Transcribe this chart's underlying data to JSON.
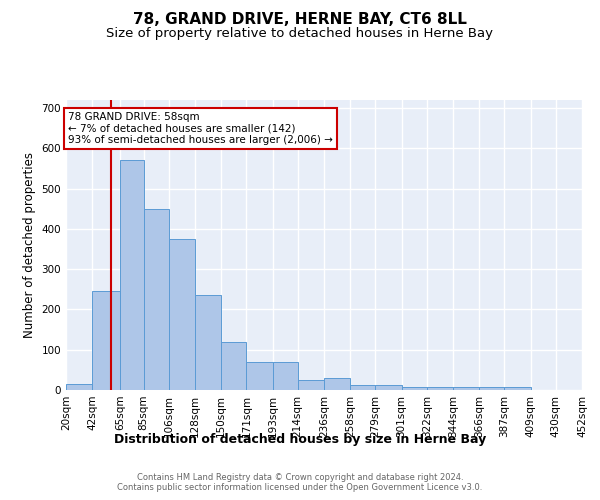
{
  "title": "78, GRAND DRIVE, HERNE BAY, CT6 8LL",
  "subtitle": "Size of property relative to detached houses in Herne Bay",
  "xlabel": "Distribution of detached houses by size in Herne Bay",
  "ylabel": "Number of detached properties",
  "bin_edges": [
    20,
    42,
    65,
    85,
    106,
    128,
    150,
    171,
    193,
    214,
    236,
    258,
    279,
    301,
    322,
    344,
    366,
    387,
    409,
    430,
    452
  ],
  "bin_labels": [
    "20sqm",
    "42sqm",
    "65sqm",
    "85sqm",
    "106sqm",
    "128sqm",
    "150sqm",
    "171sqm",
    "193sqm",
    "214sqm",
    "236sqm",
    "258sqm",
    "279sqm",
    "301sqm",
    "322sqm",
    "344sqm",
    "366sqm",
    "387sqm",
    "409sqm",
    "430sqm",
    "452sqm"
  ],
  "bar_heights": [
    15,
    245,
    570,
    450,
    375,
    235,
    120,
    70,
    70,
    25,
    30,
    12,
    12,
    8,
    8,
    8,
    8,
    8,
    0,
    0,
    5
  ],
  "bar_color": "#aec6e8",
  "bar_edge_color": "#5b9bd5",
  "red_line_x": 58,
  "red_line_color": "#cc0000",
  "annotation_text": "78 GRAND DRIVE: 58sqm\n← 7% of detached houses are smaller (142)\n93% of semi-detached houses are larger (2,006) →",
  "annotation_box_color": "#ffffff",
  "annotation_box_edge": "#cc0000",
  "ylim": [
    0,
    720
  ],
  "yticks": [
    0,
    100,
    200,
    300,
    400,
    500,
    600,
    700
  ],
  "bg_color": "#e8eef8",
  "grid_color": "#ffffff",
  "title_fontsize": 11,
  "subtitle_fontsize": 9.5,
  "axis_label_fontsize": 8.5,
  "tick_fontsize": 7.5,
  "footer_text": "Contains HM Land Registry data © Crown copyright and database right 2024.\nContains public sector information licensed under the Open Government Licence v3.0."
}
